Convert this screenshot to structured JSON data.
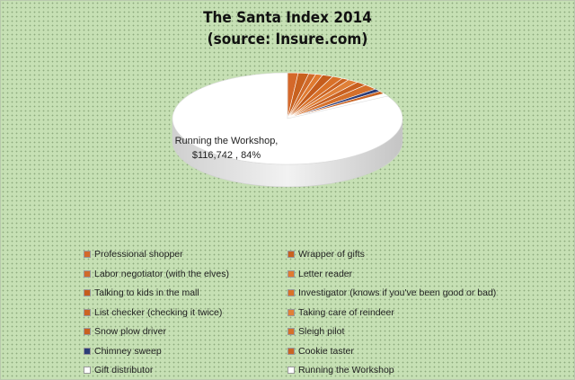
{
  "chart_data": {
    "type": "pie",
    "title": "The Santa Index 2014",
    "subtitle": "(source: Insure.com)",
    "categories": [
      "Professional shopper",
      "Wrapper of gifts",
      "Labor negotiator (with the elves)",
      "Letter reader",
      "Talking to kids in the mall",
      "Investigator (knows if you've been good or bad)",
      "List checker (checking it twice)",
      "Taking care of reindeer",
      "Snow plow driver",
      "Sleigh pilot",
      "Chimney sweep",
      "Cookie taster",
      "Gift distributor",
      "Running the Workshop"
    ],
    "values": [
      1.5,
      1.5,
      1.0,
      1.0,
      1.5,
      1.5,
      1.0,
      1.5,
      1.5,
      2.0,
      1.0,
      1.0,
      1.0,
      84
    ],
    "colors": [
      "#d4682a",
      "#c8611f",
      "#d06a2a",
      "#e07a30",
      "#c55c1c",
      "#d97128",
      "#cc6422",
      "#e08038",
      "#c86020",
      "#d5702a",
      "#2c3d78",
      "#c96424",
      "#ffffff",
      "#ffffff"
    ],
    "data_labels": [
      {
        "category": "Running the Workshop",
        "line1": "Running the Workshop,",
        "line2": "$116,742 , 84%"
      }
    ],
    "legend_placement": "bottom",
    "grid": false
  }
}
